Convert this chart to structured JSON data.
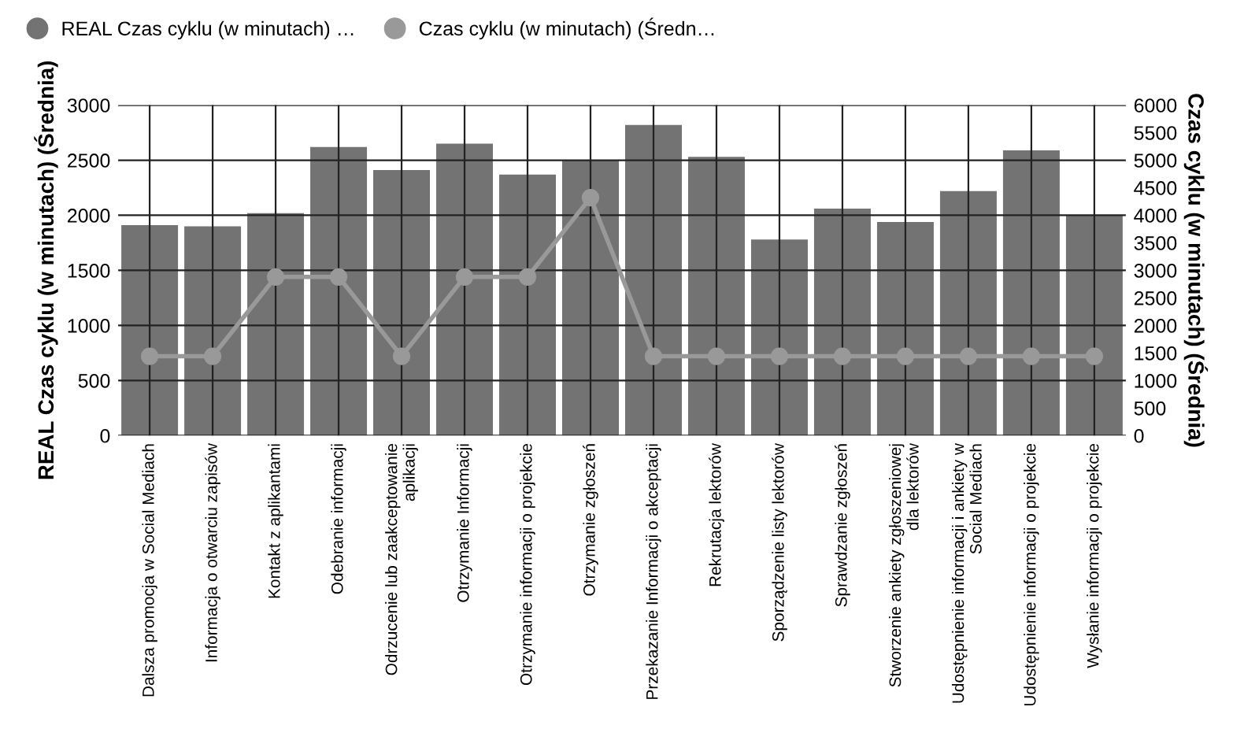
{
  "chart_data": {
    "type": "bar",
    "ylabel": "REAL Czas cyklu (w minutach) (Średnia)",
    "y2label": "Czas cyklu (w minutach) (Średnia)",
    "categories": [
      "Dalsza promocja w Social Mediach",
      "Informacja o otwarciu zapisów",
      "Kontakt z aplikantami",
      "Odebranie informacji",
      "Odrzucenie lub zaakceptowanie\naplikacji",
      "Otrzymanie Informacji",
      "Otrzymanie informacji o projekcie",
      "Otrzymanie zgłoszeń",
      "Przekazanie Informacji o akceptacji",
      "Rekrutacja lektorów",
      "Sporządzenie listy lektorów",
      "Sprawdzanie zgłoszeń",
      "Stworzenie ankiety zgłoszeniowej\ndla lektorów",
      "Udostępnienie informacji i ankiety w\nSocial Mediach",
      "Udostępnienie informacji o projekcie",
      "Wysłanie informacji o projekcie"
    ],
    "series": [
      {
        "name": "REAL Czas cyklu (w minutach) …",
        "color": "#737373",
        "values": [
          1910,
          1900,
          2020,
          2620,
          2410,
          2650,
          2370,
          2500,
          2820,
          2530,
          1780,
          2060,
          1940,
          2220,
          2590,
          2000
        ]
      },
      {
        "name": "Czas cyklu (w minutach) (Średn…",
        "type": "line",
        "axis": "y2",
        "color": "#999999",
        "marker": "circle",
        "values": [
          1440,
          1440,
          2880,
          2880,
          1440,
          2880,
          2880,
          4320,
          1440,
          1440,
          1440,
          1440,
          1440,
          1440,
          1440,
          1440
        ]
      }
    ],
    "ylim": [
      0,
      3000
    ],
    "yticks": [
      0,
      500,
      1000,
      1500,
      2000,
      2500,
      3000
    ],
    "y2lim": [
      0,
      6000
    ],
    "y2ticks": [
      0,
      500,
      1000,
      1500,
      2000,
      2500,
      3000,
      3500,
      4000,
      4500,
      5000,
      5500,
      6000
    ],
    "grid": true,
    "legend": "top left"
  }
}
